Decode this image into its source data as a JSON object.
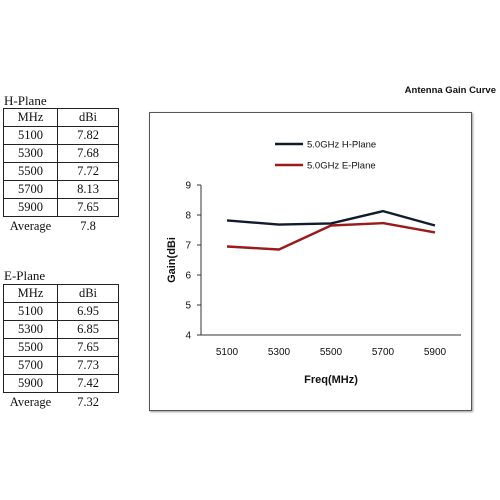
{
  "tables": [
    {
      "title": "H-Plane",
      "headers": [
        "MHz",
        "dBi"
      ],
      "rows": [
        [
          "5100",
          "7.82"
        ],
        [
          "5300",
          "7.68"
        ],
        [
          "5500",
          "7.72"
        ],
        [
          "5700",
          "8.13"
        ],
        [
          "5900",
          "7.65"
        ]
      ],
      "average_label": "Average",
      "average_value": "7.8"
    },
    {
      "title": "E-Plane",
      "headers": [
        "MHz",
        "dBi"
      ],
      "rows": [
        [
          "5100",
          "6.95"
        ],
        [
          "5300",
          "6.85"
        ],
        [
          "5500",
          "7.65"
        ],
        [
          "5700",
          "7.73"
        ],
        [
          "5900",
          "7.42"
        ]
      ],
      "average_label": "Average",
      "average_value": "7.32"
    }
  ],
  "chart_data": {
    "type": "line",
    "title": "Antenna Gain Curve",
    "xlabel": "Freq(MHz)",
    "ylabel": "Gain(dBi",
    "categories": [
      "5100",
      "5300",
      "5500",
      "5700",
      "5900"
    ],
    "ylim": [
      4,
      9
    ],
    "yticks": [
      "4",
      "5",
      "6",
      "7",
      "8",
      "9"
    ],
    "grid": false,
    "legend": "top",
    "series": [
      {
        "name": "5.0GHz H-Plane",
        "color": "#101c2e",
        "values": [
          7.82,
          7.68,
          7.72,
          8.13,
          7.65
        ]
      },
      {
        "name": "5.0GHz E-Plane",
        "color": "#9a1b1b",
        "values": [
          6.95,
          6.85,
          7.65,
          7.73,
          7.42
        ]
      }
    ]
  }
}
